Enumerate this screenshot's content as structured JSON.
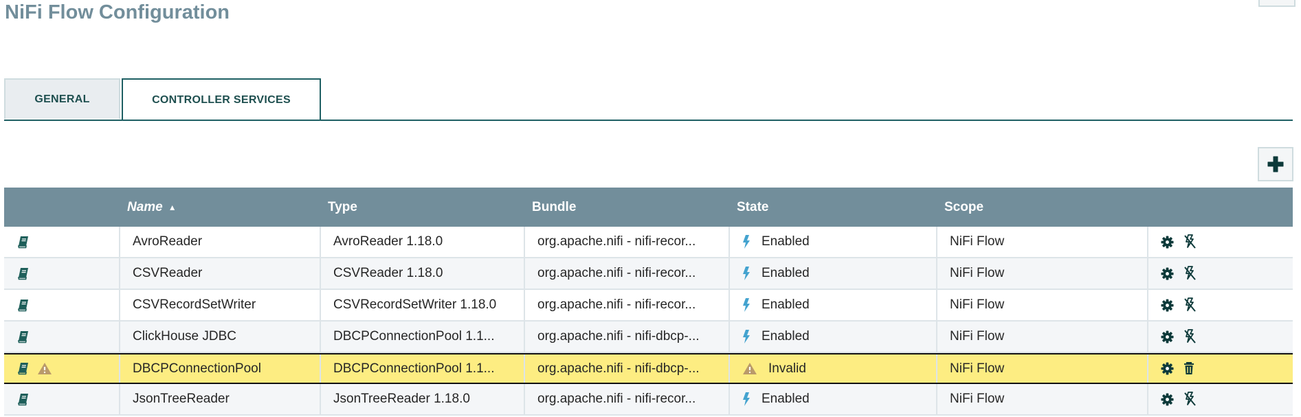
{
  "title": "NiFi Flow Configuration",
  "tabs": [
    {
      "label": "GENERAL",
      "active": false
    },
    {
      "label": "CONTROLLER SERVICES",
      "active": true
    }
  ],
  "add_button_icon": "plus-icon",
  "table": {
    "columns": [
      "",
      "Name",
      "Type",
      "Bundle",
      "State",
      "Scope",
      ""
    ],
    "sort": {
      "column": "Name",
      "direction": "ascending"
    },
    "rows": [
      {
        "name": "AvroReader",
        "type": "AvroReader 1.18.0",
        "bundle": "org.apache.nifi - nifi-recor...",
        "state": "Enabled",
        "scope": "NiFi Flow",
        "warning": false,
        "action2": "disable"
      },
      {
        "name": "CSVReader",
        "type": "CSVReader 1.18.0",
        "bundle": "org.apache.nifi - nifi-recor...",
        "state": "Enabled",
        "scope": "NiFi Flow",
        "warning": false,
        "action2": "disable"
      },
      {
        "name": "CSVRecordSetWriter",
        "type": "CSVRecordSetWriter 1.18.0",
        "bundle": "org.apache.nifi - nifi-recor...",
        "state": "Enabled",
        "scope": "NiFi Flow",
        "warning": false,
        "action2": "disable"
      },
      {
        "name": "ClickHouse JDBC",
        "type": "DBCPConnectionPool 1.1...",
        "bundle": "org.apache.nifi - nifi-dbcp-...",
        "state": "Enabled",
        "scope": "NiFi Flow",
        "warning": false,
        "action2": "disable"
      },
      {
        "name": "DBCPConnectionPool",
        "type": "DBCPConnectionPool 1.1...",
        "bundle": "org.apache.nifi - nifi-dbcp-...",
        "state": "Invalid",
        "scope": "NiFi Flow",
        "warning": true,
        "selected": true,
        "action2": "delete"
      },
      {
        "name": "JsonTreeReader",
        "type": "JsonTreeReader 1.18.0",
        "bundle": "org.apache.nifi - nifi-recor...",
        "state": "Enabled",
        "scope": "NiFi Flow",
        "warning": false,
        "action2": "disable"
      }
    ]
  },
  "colors": {
    "title": "#728e9b",
    "header_bg": "#728e9b",
    "accent": "#1e5f63",
    "enabled_bolt": "#44a3cf",
    "warning": "#ba9a6a",
    "selected_row": "#fded82"
  }
}
